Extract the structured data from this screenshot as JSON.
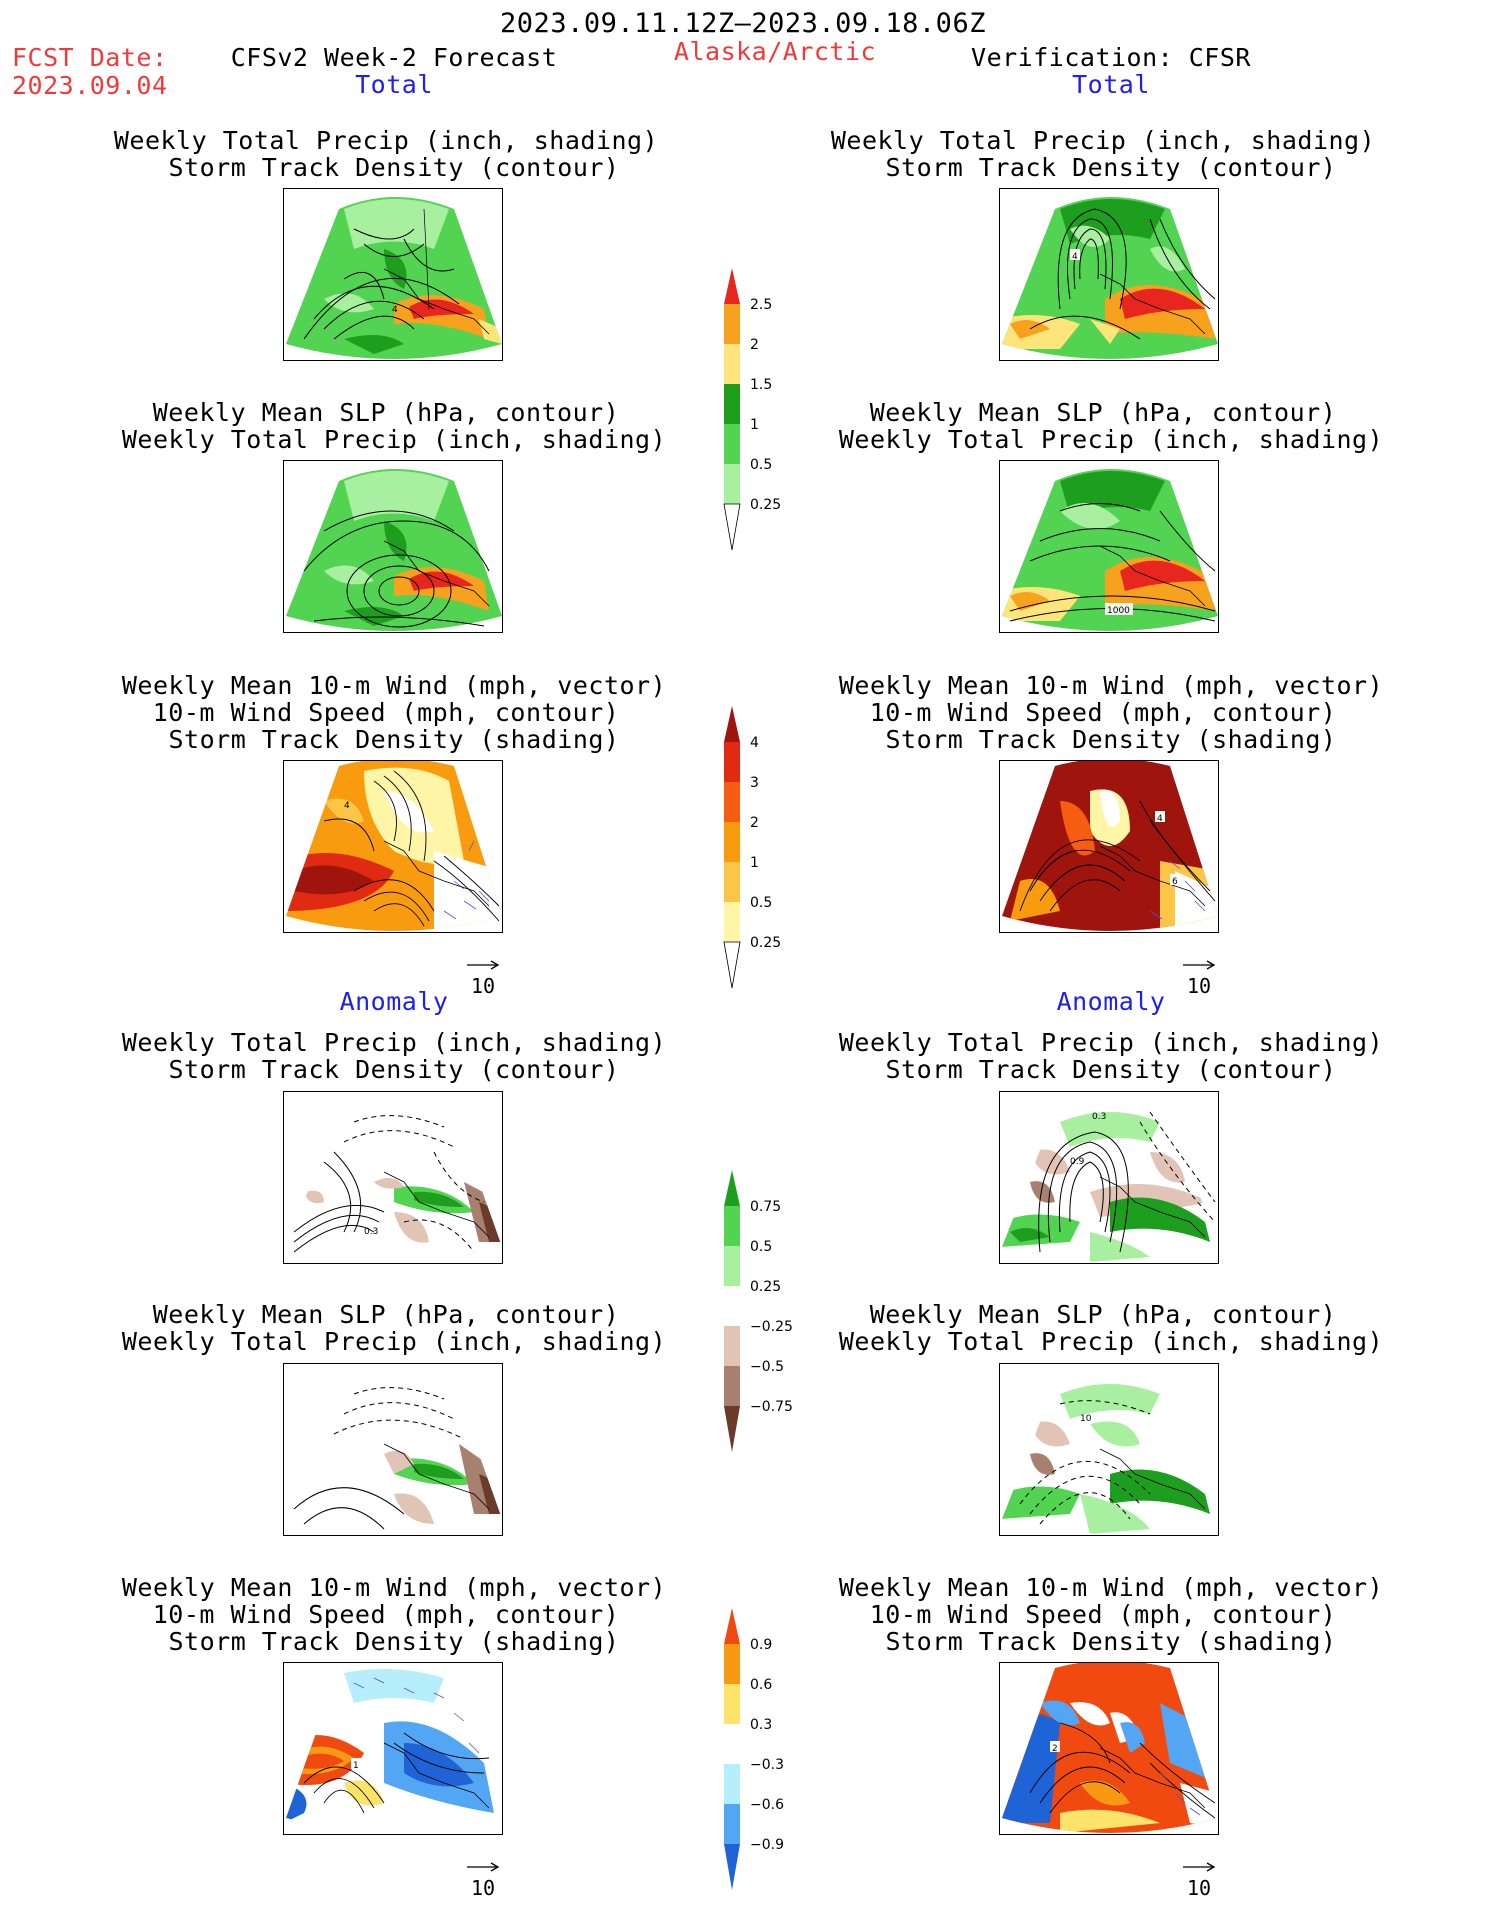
{
  "header": {
    "period": "2023.09.11.12Z–2023.09.18.06Z",
    "fcst_label": "FCST Date:",
    "fcst_date": "2023.09.04",
    "model": "CFSv2 Week-2 Forecast",
    "region": "Alaska/Arctic",
    "verification": "Verification: CFSR"
  },
  "sections": {
    "total_left": "Total",
    "total_right": "Total",
    "anomaly_left": "Anomaly",
    "anomaly_right": "Anomaly"
  },
  "titles": {
    "precip_storm": [
      "Weekly Total Precip (inch, shading)",
      "Storm Track Density (contour)"
    ],
    "slp_precip": [
      "Weekly Mean SLP (hPa, contour)",
      "Weekly Total Precip (inch, shading)"
    ],
    "wind": [
      "Weekly Mean 10-m Wind (mph, vector)",
      "10-m Wind Speed (mph, contour)",
      "Storm Track Density (shading)"
    ]
  },
  "colorbars": {
    "precip_total": {
      "labels": [
        "2.5",
        "2",
        "1.5",
        "1",
        "0.5",
        "0.25"
      ],
      "colors": [
        "#e8251e",
        "#f7a21e",
        "#fde57c",
        "#1e9e1e",
        "#52d352",
        "#a8f0a0"
      ]
    },
    "storm_total": {
      "labels": [
        "4",
        "3",
        "2",
        "1",
        "0.5",
        "0.25"
      ],
      "colors": [
        "#a0140e",
        "#e02a12",
        "#f65d10",
        "#f99b0e",
        "#fbc646",
        "#fef6a6"
      ]
    },
    "precip_anom": {
      "labels": [
        "0.75",
        "0.5",
        "0.25",
        "−0.25",
        "−0.5",
        "−0.75"
      ],
      "colors": [
        "#1e9e1e",
        "#52d352",
        "#a8f0a0",
        "#ffffff",
        "#e2c4b6",
        "#a88070",
        "#6a3a2a"
      ]
    },
    "storm_anom": {
      "labels": [
        "0.9",
        "0.6",
        "0.3",
        "−0.3",
        "−0.6",
        "−0.9"
      ],
      "colors": [
        "#f04a10",
        "#f79a12",
        "#fde36a",
        "#ffffff",
        "#b6eefc",
        "#52a6f4",
        "#1e64d6"
      ]
    }
  },
  "map_labels": {
    "tl1_contour": "4",
    "tr1_contour": "4",
    "tr2_contour": "1000",
    "tl3_contour": "4",
    "tr3_contour_a": "4",
    "tr3_contour_b": "6",
    "al1_contour": "0.3",
    "ar1_contour_a": "0.3",
    "ar1_contour_b": "0.9",
    "ar2_contour": "10",
    "al3_contour": "1",
    "ar3_contour": "2"
  },
  "vector_ref": "10"
}
